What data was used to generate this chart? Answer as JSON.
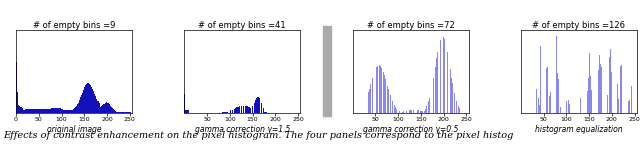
{
  "title_fontsize": 6.0,
  "label_fontsize": 5.5,
  "caption": "Effects of contrast enhancement on the pixel histogram. The four panels correspond to the pixel histog",
  "caption_fontsize": 7.0,
  "panel_titles": [
    "# of empty bins =9",
    "# of empty bins =41",
    "# of empty bins =72",
    "# of empty bins =126"
  ],
  "xlabels": [
    "original image",
    "gamma correction γ=1.5",
    "gamma correction γ=0.5",
    "histogram equalization"
  ],
  "dark_blue": "#1111BB",
  "light_blue": "#8888EE",
  "background": "#FFFFFF",
  "fig_width": 6.4,
  "fig_height": 1.51,
  "panel_xticks": [
    [
      0,
      50,
      100,
      150,
      200,
      250
    ],
    [
      50,
      100,
      150,
      200,
      250
    ],
    [
      50,
      100,
      150,
      200,
      250
    ],
    [
      50,
      100,
      150,
      200,
      250
    ]
  ],
  "panel_xticklabels": [
    [
      "0",
      "50",
      "100",
      "150",
      "200",
      "250"
    ],
    [
      "50",
      "100",
      "150",
      "200",
      "250"
    ],
    [
      "50",
      "100",
      "150",
      "200",
      "250"
    ],
    [
      "50",
      "100",
      "150",
      "200",
      "250"
    ]
  ]
}
